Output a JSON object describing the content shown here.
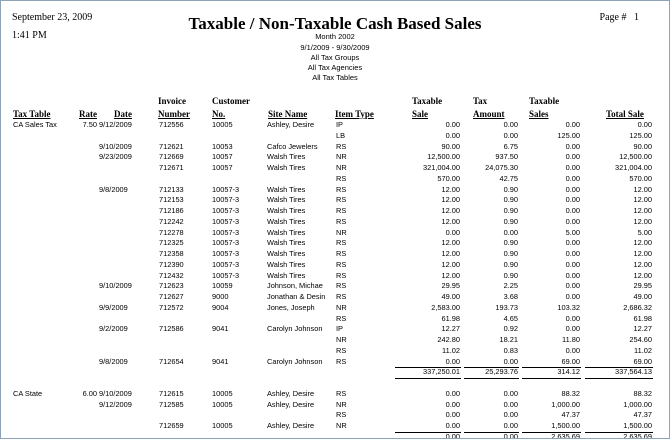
{
  "header": {
    "date": "September 23, 2009",
    "time": "1:41 PM",
    "page_label": "Page #",
    "page_number": "1",
    "title": "Taxable / Non-Taxable Cash Based Sales",
    "subtitle": "Month 2002",
    "date_range": "9/1/2009 - 9/30/2009",
    "filter_groups": "All Tax Groups",
    "filter_agencies": "All Tax Agencies",
    "filter_tables": "All Tax Tables"
  },
  "columns": {
    "tax_table": "Tax Table",
    "rate": "Rate",
    "date": "Date",
    "invoice_1": "Invoice",
    "invoice_2": "Number",
    "customer_1": "Customer",
    "customer_2": "No.",
    "site_name": "Site Name",
    "item_type": "Item Type",
    "taxable_1": "Taxable",
    "taxable_2": "Sale",
    "tax_1": "Tax",
    "tax_2": "Amount",
    "taxable_sales_1": "Taxable",
    "taxable_sales_2": "Sales",
    "total_sale": "Total Sale"
  },
  "rows": [
    {
      "tt": "CA Sales Tax",
      "rate": "7.50",
      "date": "9/12/2009",
      "inv": "712556",
      "cust": "10005",
      "site": "Ashley, Desire",
      "type": "IP",
      "tax": "0.00",
      "amt": "0.00",
      "tsl": "0.00",
      "tot": "0.00"
    },
    {
      "tt": "",
      "rate": "",
      "date": "",
      "inv": "",
      "cust": "",
      "site": "",
      "type": "LB",
      "tax": "0.00",
      "amt": "0.00",
      "tsl": "125.00",
      "tot": "125.00"
    },
    {
      "tt": "",
      "rate": "",
      "date": "9/10/2009",
      "inv": "712621",
      "cust": "10053",
      "site": "Cafco Jewelers",
      "type": "RS",
      "tax": "90.00",
      "amt": "6.75",
      "tsl": "0.00",
      "tot": "90.00"
    },
    {
      "tt": "",
      "rate": "",
      "date": "9/23/2009",
      "inv": "712669",
      "cust": "10057",
      "site": "Walsh Tires",
      "type": "NR",
      "tax": "12,500.00",
      "amt": "937.50",
      "tsl": "0.00",
      "tot": "12,500.00"
    },
    {
      "tt": "",
      "rate": "",
      "date": "",
      "inv": "712671",
      "cust": "10057",
      "site": "Walsh Tires",
      "type": "NR",
      "tax": "321,004.00",
      "amt": "24,075.30",
      "tsl": "0.00",
      "tot": "321,004.00"
    },
    {
      "tt": "",
      "rate": "",
      "date": "",
      "inv": "",
      "cust": "",
      "site": "",
      "type": "RS",
      "tax": "570.00",
      "amt": "42.75",
      "tsl": "0.00",
      "tot": "570.00"
    },
    {
      "tt": "",
      "rate": "",
      "date": "9/8/2009",
      "inv": "712133",
      "cust": "10057-3",
      "site": "Walsh Tires",
      "type": "RS",
      "tax": "12.00",
      "amt": "0.90",
      "tsl": "0.00",
      "tot": "12.00"
    },
    {
      "tt": "",
      "rate": "",
      "date": "",
      "inv": "712153",
      "cust": "10057-3",
      "site": "Walsh Tires",
      "type": "RS",
      "tax": "12.00",
      "amt": "0.90",
      "tsl": "0.00",
      "tot": "12.00"
    },
    {
      "tt": "",
      "rate": "",
      "date": "",
      "inv": "712186",
      "cust": "10057-3",
      "site": "Walsh Tires",
      "type": "RS",
      "tax": "12.00",
      "amt": "0.90",
      "tsl": "0.00",
      "tot": "12.00"
    },
    {
      "tt": "",
      "rate": "",
      "date": "",
      "inv": "712242",
      "cust": "10057-3",
      "site": "Walsh Tires",
      "type": "RS",
      "tax": "12.00",
      "amt": "0.90",
      "tsl": "0.00",
      "tot": "12.00"
    },
    {
      "tt": "",
      "rate": "",
      "date": "",
      "inv": "712278",
      "cust": "10057-3",
      "site": "Walsh Tires",
      "type": "NR",
      "tax": "0.00",
      "amt": "0.00",
      "tsl": "5.00",
      "tot": "5.00"
    },
    {
      "tt": "",
      "rate": "",
      "date": "",
      "inv": "712325",
      "cust": "10057-3",
      "site": "Walsh Tires",
      "type": "RS",
      "tax": "12.00",
      "amt": "0.90",
      "tsl": "0.00",
      "tot": "12.00"
    },
    {
      "tt": "",
      "rate": "",
      "date": "",
      "inv": "712358",
      "cust": "10057-3",
      "site": "Walsh Tires",
      "type": "RS",
      "tax": "12.00",
      "amt": "0.90",
      "tsl": "0.00",
      "tot": "12.00"
    },
    {
      "tt": "",
      "rate": "",
      "date": "",
      "inv": "712390",
      "cust": "10057-3",
      "site": "Walsh Tires",
      "type": "RS",
      "tax": "12.00",
      "amt": "0.90",
      "tsl": "0.00",
      "tot": "12.00"
    },
    {
      "tt": "",
      "rate": "",
      "date": "",
      "inv": "712432",
      "cust": "10057-3",
      "site": "Walsh Tires",
      "type": "RS",
      "tax": "12.00",
      "amt": "0.90",
      "tsl": "0.00",
      "tot": "12.00"
    },
    {
      "tt": "",
      "rate": "",
      "date": "9/10/2009",
      "inv": "712623",
      "cust": "10059",
      "site": "Johnson, Michae",
      "type": "RS",
      "tax": "29.95",
      "amt": "2.25",
      "tsl": "0.00",
      "tot": "29.95"
    },
    {
      "tt": "",
      "rate": "",
      "date": "",
      "inv": "712627",
      "cust": "9000",
      "site": "Jonathan & Desin",
      "type": "RS",
      "tax": "49.00",
      "amt": "3.68",
      "tsl": "0.00",
      "tot": "49.00"
    },
    {
      "tt": "",
      "rate": "",
      "date": "9/9/2009",
      "inv": "712572",
      "cust": "9004",
      "site": "Jones, Joseph",
      "type": "NR",
      "tax": "2,583.00",
      "amt": "193.73",
      "tsl": "103.32",
      "tot": "2,686.32"
    },
    {
      "tt": "",
      "rate": "",
      "date": "",
      "inv": "",
      "cust": "",
      "site": "",
      "type": "RS",
      "tax": "61.98",
      "amt": "4.65",
      "tsl": "0.00",
      "tot": "61.98"
    },
    {
      "tt": "",
      "rate": "",
      "date": "9/2/2009",
      "inv": "712586",
      "cust": "9041",
      "site": "Carolyn Johnson",
      "type": "IP",
      "tax": "12.27",
      "amt": "0.92",
      "tsl": "0.00",
      "tot": "12.27"
    },
    {
      "tt": "",
      "rate": "",
      "date": "",
      "inv": "",
      "cust": "",
      "site": "",
      "type": "NR",
      "tax": "242.80",
      "amt": "18.21",
      "tsl": "11.80",
      "tot": "254.60"
    },
    {
      "tt": "",
      "rate": "",
      "date": "",
      "inv": "",
      "cust": "",
      "site": "",
      "type": "RS",
      "tax": "11.02",
      "amt": "0.83",
      "tsl": "0.00",
      "tot": "11.02"
    },
    {
      "tt": "",
      "rate": "",
      "date": "9/8/2009",
      "inv": "712654",
      "cust": "9041",
      "site": "Carolyn Johnson",
      "type": "RS",
      "tax": "0.00",
      "amt": "0.00",
      "tsl": "69.00",
      "tot": "69.00"
    },
    {
      "tt": "",
      "rate": "",
      "date": "",
      "inv": "",
      "cust": "",
      "site": "",
      "type": "",
      "tax": "337,250.01",
      "amt": "25,293.76",
      "tsl": "314.12",
      "tot": "337,564.13",
      "total": true
    },
    {
      "tt": "",
      "rate": "",
      "date": "",
      "inv": "",
      "cust": "",
      "site": "",
      "type": "",
      "tax": "",
      "amt": "",
      "tsl": "",
      "tot": "",
      "blank": true
    },
    {
      "tt": "CA State",
      "rate": "6.00",
      "date": "9/10/2009",
      "inv": "712615",
      "cust": "10005",
      "site": "Ashley, Desire",
      "type": "RS",
      "tax": "0.00",
      "amt": "0.00",
      "tsl": "88.32",
      "tot": "88.32"
    },
    {
      "tt": "",
      "rate": "",
      "date": "9/12/2009",
      "inv": "712585",
      "cust": "10005",
      "site": "Ashley, Desire",
      "type": "NR",
      "tax": "0.00",
      "amt": "0.00",
      "tsl": "1,000.00",
      "tot": "1,000.00"
    },
    {
      "tt": "",
      "rate": "",
      "date": "",
      "inv": "",
      "cust": "",
      "site": "",
      "type": "RS",
      "tax": "0.00",
      "amt": "0.00",
      "tsl": "47.37",
      "tot": "47.37"
    },
    {
      "tt": "",
      "rate": "",
      "date": "",
      "inv": "712659",
      "cust": "10005",
      "site": "Ashley, Desire",
      "type": "NR",
      "tax": "0.00",
      "amt": "0.00",
      "tsl": "1,500.00",
      "tot": "1,500.00"
    },
    {
      "tt": "",
      "rate": "",
      "date": "",
      "inv": "",
      "cust": "",
      "site": "",
      "type": "",
      "tax": "0.00",
      "amt": "0.00",
      "tsl": "2,635.69",
      "tot": "2,635.69",
      "total": true
    }
  ]
}
